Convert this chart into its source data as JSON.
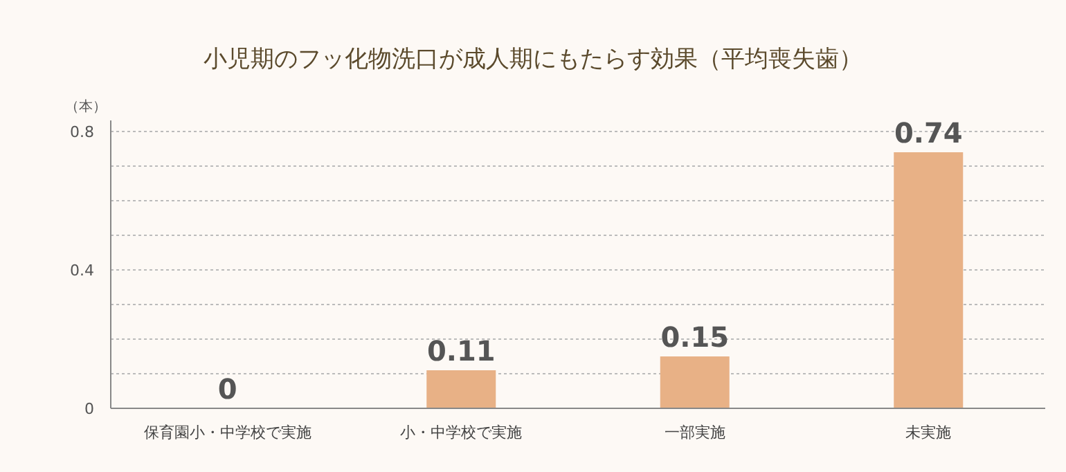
{
  "chart_data": {
    "type": "bar",
    "title": "小児期のフッ化物洗口が成人期にもたらす効果（平均喪失歯）",
    "ylabel": "（本）",
    "categories": [
      "保育園小・中学校で実施",
      "小・中学校で実施",
      "一部実施",
      "未実施"
    ],
    "values": [
      0,
      0.11,
      0.15,
      0.74
    ],
    "color": "#e8b186",
    "data_labels": true,
    "ylim": [
      0,
      0.8
    ],
    "yticks": [
      0,
      {
        "value": 0.1,
        "label": null
      },
      {
        "value": 0.2,
        "label": null
      },
      {
        "value": 0.3,
        "label": null
      },
      0.4,
      {
        "value": 0.5,
        "label": null
      },
      {
        "value": 0.6,
        "label": null
      },
      {
        "value": 0.7,
        "label": null
      },
      0.8
    ],
    "grid": "y"
  }
}
